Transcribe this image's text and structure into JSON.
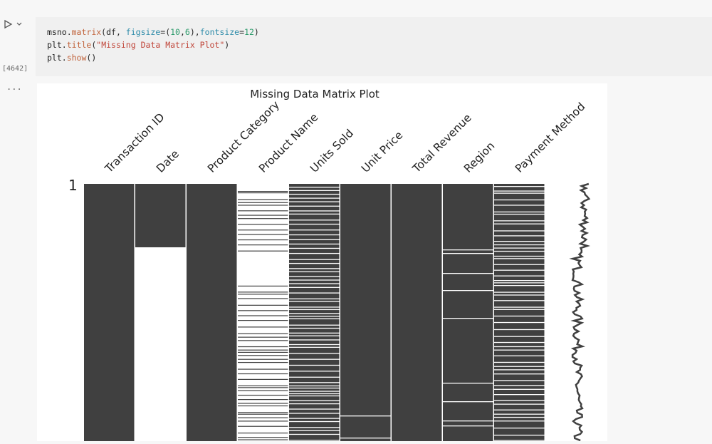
{
  "cell": {
    "execution_count": "[4642]",
    "output_prompt": "...",
    "code": [
      [
        "msno.",
        "matrix",
        "(df, ",
        "figsize",
        "=(",
        "10",
        ",",
        "6",
        "),",
        "fontsize",
        "=",
        "12",
        ")"
      ],
      [
        "plt.",
        "title",
        "(",
        "\"Missing Data Matrix Plot\"",
        ")"
      ],
      [
        "plt.",
        "show",
        "()"
      ]
    ]
  },
  "plot": {
    "title": "Missing Data Matrix Plot",
    "row_label": "1",
    "columns": [
      "Transaction ID",
      "Date",
      "Product Category",
      "Product Name",
      "Units Sold",
      "Unit Price",
      "Total Revenue",
      "Region",
      "Payment Method"
    ]
  }
}
